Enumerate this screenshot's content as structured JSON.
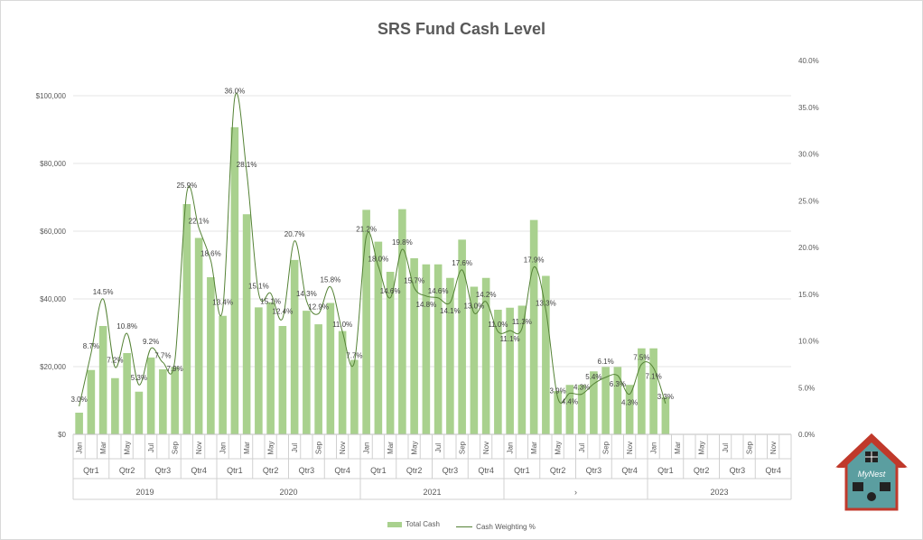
{
  "chart_data": {
    "type": "bar+line",
    "title": "SRS Fund Cash Level",
    "colors": {
      "bars": "#a9d18e",
      "line": "#548235"
    },
    "years": [
      "2019",
      "2020",
      "2021",
      "›",
      "2023"
    ],
    "quarters": [
      "Qtr1",
      "Qtr2",
      "Qtr3",
      "Qtr4"
    ],
    "months": [
      "Jan",
      "Feb",
      "Mar",
      "Apr",
      "May",
      "Jun",
      "Jul",
      "Aug",
      "Sep",
      "Oct",
      "Nov",
      "Dec"
    ],
    "left_axis": {
      "min": 0,
      "max": 110000,
      "ticks": [
        "$0",
        "$20,000",
        "$40,000",
        "$60,000",
        "$80,000",
        "$100,000"
      ],
      "tick_values": [
        0,
        20000,
        40000,
        60000,
        80000,
        100000
      ]
    },
    "right_axis": {
      "min": 0,
      "max": 0.4,
      "ticks": [
        "0.0%",
        "5.0%",
        "10.0%",
        "15.0%",
        "20.0%",
        "25.0%",
        "30.0%",
        "35.0%",
        "40.0%"
      ]
    },
    "grid": true,
    "legend_position": "bottom",
    "series": [
      {
        "name": "Total Cash",
        "type": "bar",
        "axis": "left",
        "values": [
          6400,
          19000,
          32000,
          16600,
          24000,
          12600,
          22700,
          19200,
          19900,
          68000,
          58000,
          46400,
          35000,
          90700,
          65000,
          37500,
          39000,
          32000,
          51500,
          36500,
          32500,
          38800,
          30500,
          22000,
          66300,
          56900,
          48000,
          66500,
          52000,
          50200,
          50200,
          46200,
          57500,
          43600,
          46200,
          36800,
          37400,
          38000,
          63300,
          46800,
          12800,
          14600,
          14600,
          18600,
          19900,
          19900,
          14600,
          25400,
          25400,
          11000
        ]
      },
      {
        "name": "Cash Weighting %",
        "type": "line",
        "axis": "right",
        "values": [
          3.0,
          8.7,
          14.5,
          7.2,
          10.8,
          5.3,
          9.2,
          7.7,
          7.9,
          25.9,
          22.1,
          18.6,
          13.4,
          36.0,
          28.1,
          15.1,
          15.1,
          12.4,
          20.7,
          14.3,
          12.9,
          15.8,
          11.0,
          7.7,
          21.2,
          18.0,
          14.6,
          19.8,
          15.7,
          14.8,
          14.6,
          14.1,
          17.6,
          13.0,
          14.2,
          11.0,
          11.1,
          11.3,
          17.9,
          13.3,
          3.9,
          4.4,
          4.3,
          5.4,
          6.1,
          6.3,
          4.3,
          7.5,
          7.1,
          3.3
        ],
        "labels": [
          "3.0%",
          "8.7%",
          "14.5%",
          "7.2%",
          "10.8%",
          "5.3%",
          "9.2%",
          "7.7%",
          "7.9%",
          "25.9%",
          "22.1%",
          "18.6%",
          "13.4%",
          "36.0%",
          "28.1%",
          "15.1%",
          "15.1%",
          "12.4%",
          "20.7%",
          "14.3%",
          "12.9%",
          "15.8%",
          "11.0%",
          "7.7%",
          "21.2%",
          "18.0%",
          "14.6%",
          "19.8%",
          "15.7%",
          "14.8%",
          "14.6%",
          "14.1%",
          "17.6%",
          "13.0%",
          "14.2%",
          "11.0%",
          "11.1%",
          "11.3%",
          "17.9%",
          "13.3%",
          "3.9%",
          "4.4%",
          "4.3%",
          "5.4%",
          "6.1%",
          "6.3%",
          "4.3%",
          "7.5%",
          "7.1%",
          "3.3%"
        ]
      }
    ]
  },
  "logo": {
    "text": "MyNest"
  }
}
